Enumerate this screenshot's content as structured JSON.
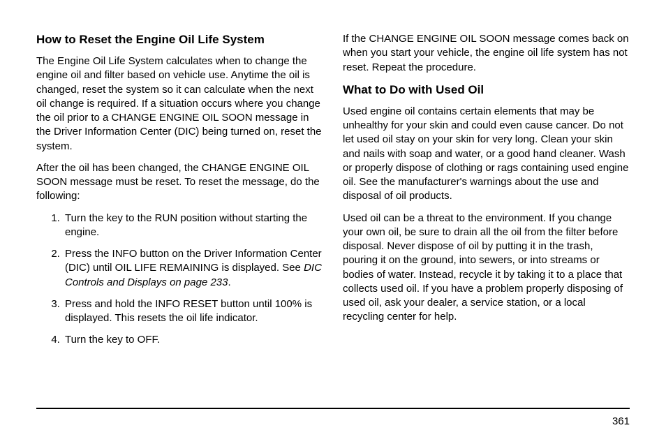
{
  "left": {
    "heading1": "How to Reset the Engine Oil Life System",
    "para1": "The Engine Oil Life System calculates when to change the engine oil and filter based on vehicle use. Anytime the oil is changed, reset the system so it can calculate when the next oil change is required. If a situation occurs where you change the oil prior to a CHANGE ENGINE OIL SOON message in the Driver Information Center (DIC) being turned on, reset the system.",
    "para2": "After the oil has been changed, the CHANGE ENGINE OIL SOON message must be reset. To reset the message, do the following:",
    "step1": "Turn the key to the RUN position without starting the engine.",
    "step2a": "Press the INFO button on the Driver Information Center (DIC) until OIL LIFE REMAINING is displayed. See ",
    "step2b_italic": "DIC Controls and Displays on page 233",
    "step2c": ".",
    "step3": "Press and hold the INFO RESET button until 100% is displayed. This resets the oil life indicator.",
    "step4": "Turn the key to OFF."
  },
  "right": {
    "para1": "If the CHANGE ENGINE OIL SOON message comes back on when you start your vehicle, the engine oil life system has not reset. Repeat the procedure.",
    "heading1": "What to Do with Used Oil",
    "para2": "Used engine oil contains certain elements that may be unhealthy for your skin and could even cause cancer. Do not let used oil stay on your skin for very long. Clean your skin and nails with soap and water, or a good hand cleaner. Wash or properly dispose of clothing or rags containing used engine oil. See the manufacturer's warnings about the use and disposal of oil products.",
    "para3": "Used oil can be a threat to the environment. If you change your own oil, be sure to drain all the oil from the filter before disposal. Never dispose of oil by putting it in the trash, pouring it on the ground, into sewers, or into streams or bodies of water. Instead, recycle it by taking it to a place that collects used oil. If you have a problem properly disposing of used oil, ask your dealer, a service station, or a local recycling center for help."
  },
  "page_number": "361"
}
